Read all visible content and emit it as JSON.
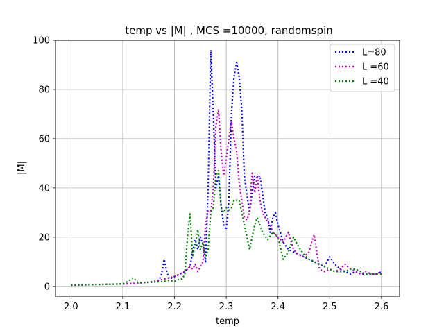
{
  "chart_data": {
    "type": "line",
    "title": "temp vs |M| , MCS =10000, randomspin",
    "xlabel": "temp",
    "ylabel": "|M|",
    "xlim": [
      1.97,
      2.635
    ],
    "ylim": [
      -4,
      100
    ],
    "xticks": [
      2.0,
      2.1,
      2.2,
      2.3,
      2.4,
      2.5,
      2.6
    ],
    "xtick_labels": [
      "2.0",
      "2.1",
      "2.2",
      "2.3",
      "2.4",
      "2.5",
      "2.6"
    ],
    "yticks": [
      0,
      20,
      40,
      60,
      80,
      100
    ],
    "ytick_labels": [
      "0",
      "20",
      "40",
      "60",
      "80",
      "100"
    ],
    "grid": true,
    "legend_position": "top-right",
    "line_style": "dotted",
    "series": [
      {
        "name": "L=80",
        "color": "#0000ff",
        "x": [
          2.0,
          2.02,
          2.04,
          2.06,
          2.08,
          2.1,
          2.12,
          2.14,
          2.16,
          2.17,
          2.175,
          2.18,
          2.185,
          2.19,
          2.2,
          2.21,
          2.22,
          2.23,
          2.235,
          2.24,
          2.245,
          2.25,
          2.255,
          2.26,
          2.265,
          2.27,
          2.275,
          2.28,
          2.285,
          2.29,
          2.295,
          2.3,
          2.305,
          2.31,
          2.315,
          2.32,
          2.325,
          2.33,
          2.335,
          2.34,
          2.345,
          2.35,
          2.355,
          2.36,
          2.365,
          2.37,
          2.375,
          2.38,
          2.385,
          2.39,
          2.395,
          2.4,
          2.41,
          2.42,
          2.43,
          2.44,
          2.45,
          2.46,
          2.47,
          2.48,
          2.49,
          2.5,
          2.51,
          2.52,
          2.53,
          2.54,
          2.55,
          2.56,
          2.57,
          2.58,
          2.59,
          2.6
        ],
        "y": [
          0.5,
          0.6,
          0.7,
          0.8,
          0.9,
          1.0,
          1.2,
          1.5,
          1.8,
          2.5,
          5,
          11,
          6,
          3,
          4,
          5,
          6,
          8,
          14,
          19,
          15,
          20,
          17,
          10,
          40,
          96,
          70,
          40,
          45,
          33,
          25,
          23,
          35,
          70,
          85,
          91,
          85,
          72,
          45,
          37,
          30,
          38,
          45,
          44,
          45,
          38,
          30,
          28,
          22,
          28,
          30,
          25,
          18,
          15,
          14,
          13,
          12,
          11,
          10,
          9,
          8,
          12,
          9,
          7,
          6,
          5,
          6,
          5,
          5,
          5,
          5,
          6
        ]
      },
      {
        "name": "L =60",
        "color": "#bf00bf",
        "x": [
          2.0,
          2.02,
          2.04,
          2.06,
          2.08,
          2.1,
          2.12,
          2.14,
          2.16,
          2.18,
          2.2,
          2.21,
          2.22,
          2.23,
          2.235,
          2.24,
          2.245,
          2.25,
          2.255,
          2.26,
          2.265,
          2.27,
          2.275,
          2.28,
          2.285,
          2.29,
          2.295,
          2.3,
          2.305,
          2.31,
          2.315,
          2.32,
          2.325,
          2.33,
          2.335,
          2.34,
          2.345,
          2.35,
          2.355,
          2.36,
          2.365,
          2.37,
          2.375,
          2.38,
          2.385,
          2.39,
          2.4,
          2.41,
          2.42,
          2.43,
          2.44,
          2.45,
          2.46,
          2.465,
          2.47,
          2.475,
          2.48,
          2.49,
          2.5,
          2.51,
          2.52,
          2.53,
          2.54,
          2.55,
          2.56,
          2.57,
          2.58,
          2.59,
          2.6
        ],
        "y": [
          0.5,
          0.6,
          0.7,
          0.8,
          0.9,
          1.0,
          1.2,
          1.5,
          2.0,
          3.0,
          4,
          5,
          6,
          8,
          7,
          9,
          6,
          8,
          10,
          25,
          31,
          30,
          40,
          65,
          72,
          55,
          45,
          52,
          60,
          67,
          60,
          55,
          42,
          35,
          28,
          27,
          30,
          46,
          38,
          45,
          35,
          30,
          28,
          26,
          25,
          22,
          20,
          18,
          22,
          15,
          13,
          12,
          14,
          18,
          21,
          14,
          7,
          6,
          7,
          6,
          7,
          9,
          7,
          6,
          5,
          6,
          5,
          5,
          6
        ]
      },
      {
        "name": "L =40",
        "color": "#008000",
        "x": [
          2.0,
          2.02,
          2.04,
          2.06,
          2.08,
          2.1,
          2.11,
          2.12,
          2.13,
          2.14,
          2.16,
          2.18,
          2.19,
          2.2,
          2.21,
          2.215,
          2.22,
          2.225,
          2.23,
          2.235,
          2.24,
          2.245,
          2.25,
          2.255,
          2.26,
          2.265,
          2.27,
          2.275,
          2.28,
          2.285,
          2.29,
          2.295,
          2.3,
          2.305,
          2.31,
          2.315,
          2.32,
          2.325,
          2.33,
          2.335,
          2.34,
          2.345,
          2.35,
          2.355,
          2.36,
          2.37,
          2.38,
          2.39,
          2.4,
          2.41,
          2.42,
          2.43,
          2.44,
          2.45,
          2.46,
          2.47,
          2.48,
          2.49,
          2.5,
          2.51,
          2.52,
          2.53,
          2.54,
          2.55,
          2.56,
          2.57,
          2.58,
          2.59,
          2.6
        ],
        "y": [
          0.5,
          0.6,
          0.7,
          0.8,
          0.9,
          1.0,
          2,
          3.5,
          1.5,
          1.5,
          1.8,
          2.0,
          2.5,
          2.0,
          3,
          3,
          5,
          20,
          30,
          12,
          17,
          23,
          15,
          18,
          12,
          15,
          30,
          32,
          45,
          47,
          32,
          30,
          32,
          31,
          32,
          35,
          35,
          35,
          30,
          25,
          20,
          15,
          20,
          25,
          28,
          22,
          19,
          22,
          20,
          11,
          14,
          20,
          16,
          13,
          11,
          10,
          9,
          8,
          7,
          6,
          6,
          6,
          7,
          7,
          6,
          5,
          5,
          5,
          5
        ]
      }
    ]
  }
}
